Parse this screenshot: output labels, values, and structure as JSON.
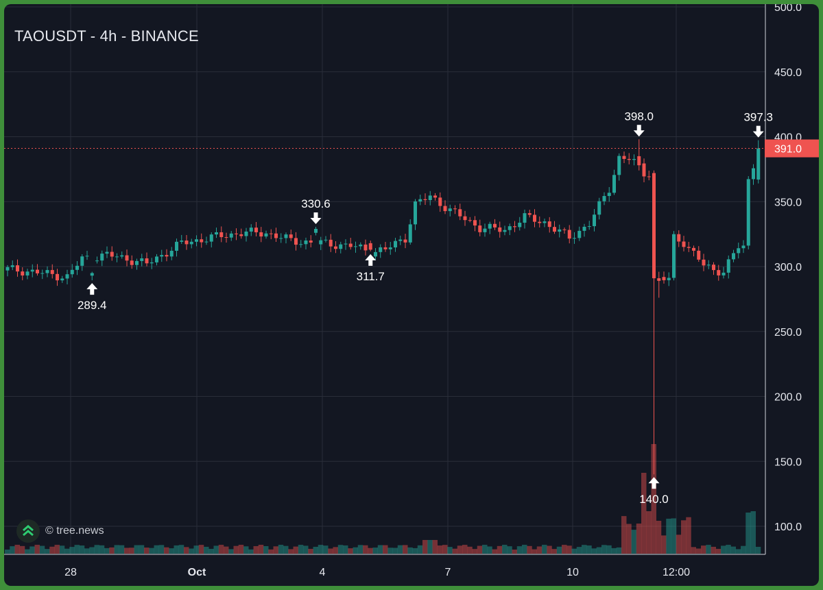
{
  "chart_data": {
    "type": "candlestick",
    "title": "TAOUSDT - 4h - BINANCE",
    "watermark": "© tree.news",
    "y_range": [
      80,
      500
    ],
    "y_ticks": [
      "100.0",
      "150.0",
      "200.0",
      "250.0",
      "300.0",
      "350.0",
      "400.0",
      "450.0",
      "500.0"
    ],
    "x_tick_labels": [
      {
        "label": "28",
        "bold": false
      },
      {
        "label": "Oct",
        "bold": true
      },
      {
        "label": "4",
        "bold": false
      },
      {
        "label": "7",
        "bold": false
      },
      {
        "label": "10",
        "bold": false
      },
      {
        "label": "12:00",
        "bold": false
      }
    ],
    "last_price": "391.0",
    "last_price_value": 391.0,
    "annotations": [
      {
        "label": "289.4",
        "value": 289.4,
        "direction": "up"
      },
      {
        "label": "330.6",
        "value": 330.6,
        "direction": "down"
      },
      {
        "label": "311.7",
        "value": 311.7,
        "direction": "up"
      },
      {
        "label": "398.0",
        "value": 398.0,
        "direction": "down"
      },
      {
        "label": "140.0",
        "value": 140.0,
        "direction": "up"
      },
      {
        "label": "397.3",
        "value": 397.3,
        "direction": "down"
      }
    ],
    "colors": {
      "up": "#26a69a",
      "down": "#ef5350",
      "background": "#131722",
      "grid": "#2a2e39",
      "text": "#e6e8ee"
    }
  }
}
